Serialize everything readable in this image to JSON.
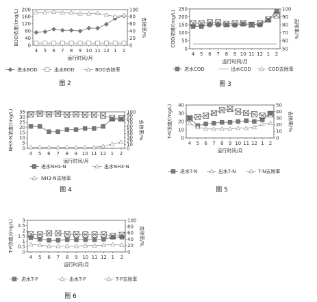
{
  "chart_data": [
    {
      "type": "line",
      "figure_label": "图 2",
      "categories": [
        "4",
        "5",
        "6",
        "7",
        "8",
        "9",
        "10",
        "11",
        "12",
        "1",
        "2"
      ],
      "xlabel": "运行时间/月",
      "ylabel": "BOD浓度/(mg/L)",
      "y2label": "去除率/%",
      "ylim": [
        0,
        200
      ],
      "yticks": [
        0,
        40,
        80,
        120,
        160,
        200
      ],
      "y2lim": [
        0,
        100
      ],
      "y2ticks": [
        0,
        20,
        40,
        60,
        80,
        100
      ],
      "series": [
        {
          "name": "进水BOD",
          "axis": "left",
          "marker": "diamond",
          "color": "#777777",
          "values": [
            72,
            76,
            90,
            84,
            84,
            80,
            96,
            96,
            118,
            150,
            165
          ]
        },
        {
          "name": "出水BOD",
          "axis": "left",
          "marker": "square-open",
          "color": "#999999",
          "values": [
            12,
            12,
            12,
            12,
            12,
            12,
            12,
            12,
            12,
            12,
            12
          ]
        },
        {
          "name": "BOD去除率",
          "axis": "right",
          "marker": "triangle-open",
          "color": "#999999",
          "values": [
            92,
            92,
            94,
            91,
            91,
            89,
            89,
            90,
            85,
            81,
            84
          ]
        }
      ]
    },
    {
      "type": "line",
      "figure_label": "图 3",
      "categories": [
        "4",
        "5",
        "6",
        "7",
        "8",
        "9",
        "10",
        "11",
        "12",
        "1",
        "2"
      ],
      "xlabel": "运行时间/月",
      "ylabel": "COD浓度/(mg/L)",
      "y2label": "去除率/%",
      "ylim": [
        0,
        250
      ],
      "yticks": [
        0,
        50,
        100,
        150,
        200,
        250
      ],
      "y2lim": [
        50,
        100
      ],
      "y2ticks": [
        50,
        60,
        70,
        80,
        90,
        100
      ],
      "series": [
        {
          "name": "进水COD",
          "axis": "left",
          "marker": "square",
          "color": "#777777",
          "values": [
            140,
            140,
            150,
            150,
            150,
            148,
            155,
            152,
            150,
            180,
            235
          ]
        },
        {
          "name": "出水COD",
          "axis": "left",
          "marker": "none",
          "color": "#999999",
          "values": [
            30,
            30,
            30,
            30,
            30,
            30,
            30,
            30,
            30,
            30,
            30
          ]
        },
        {
          "name": "COD去除率",
          "axis": "right",
          "marker": "x-open",
          "color": "#999999",
          "values": [
            82,
            82,
            83,
            83,
            81,
            82,
            82,
            80,
            82,
            87,
            92
          ]
        }
      ]
    },
    {
      "type": "line",
      "figure_label": "图 4",
      "categories": [
        "4",
        "5",
        "6",
        "7",
        "8",
        "9",
        "10",
        "11",
        "12",
        "1",
        "2"
      ],
      "xlabel": "运行时间/月",
      "ylabel": "NH3-N浓度/(mg/L)",
      "y2label": "去除率/%",
      "ylim": [
        0,
        35
      ],
      "yticks": [
        0,
        5,
        10,
        15,
        20,
        25,
        30,
        35
      ],
      "y2lim": [
        0,
        100
      ],
      "y2ticks": [
        0,
        10,
        20,
        30,
        40,
        50,
        60,
        70,
        80,
        90,
        100
      ],
      "series": [
        {
          "name": "进水NH3-N",
          "axis": "left",
          "marker": "square",
          "color": "#777777",
          "values": [
            21,
            21,
            16,
            16,
            18,
            18,
            19,
            19,
            21,
            28,
            28
          ]
        },
        {
          "name": "出水NH3-N",
          "axis": "left",
          "marker": "triangle-open",
          "color": "#999999",
          "values": [
            1,
            1,
            1,
            1,
            1,
            1,
            1,
            1,
            2,
            4,
            6
          ]
        },
        {
          "name": "NH3-N去除率",
          "axis": "right",
          "marker": "x-open",
          "color": "#999999",
          "values": [
            93,
            95,
            93,
            95,
            92,
            93,
            92,
            92,
            90,
            83,
            82
          ]
        }
      ]
    },
    {
      "type": "line",
      "figure_label": "图 5",
      "categories": [
        "4",
        "5",
        "6",
        "7",
        "8",
        "9",
        "10",
        "11",
        "12",
        "1",
        "2"
      ],
      "xlabel": "运行时间/月",
      "ylabel": "T-N浓度/(mg/L)",
      "y2label": "去除率/%",
      "ylim": [
        0,
        40
      ],
      "yticks": [
        0,
        10,
        20,
        30,
        40
      ],
      "y2lim": [
        0,
        50
      ],
      "y2ticks": [
        0,
        10,
        20,
        30,
        40,
        50
      ],
      "series": [
        {
          "name": "进水T-N",
          "axis": "left",
          "marker": "square",
          "color": "#777777",
          "values": [
            24,
            15,
            17,
            18,
            19,
            19,
            20,
            21,
            20,
            22,
            30
          ]
        },
        {
          "name": "出水T-N",
          "axis": "left",
          "marker": "triangle-open",
          "color": "#999999",
          "values": [
            18,
            13,
            11,
            11,
            11,
            11,
            12,
            12,
            13,
            17,
            18
          ]
        },
        {
          "name": "T-N去除率",
          "axis": "right",
          "marker": "x-open",
          "color": "#999999",
          "values": [
            30,
            32,
            34,
            38,
            42,
            44,
            40,
            38,
            36,
            34,
            36
          ]
        }
      ]
    },
    {
      "type": "line",
      "figure_label": "图 6",
      "categories": [
        "4",
        "5",
        "6",
        "7",
        "8",
        "9",
        "10",
        "11",
        "12",
        "1",
        "2"
      ],
      "xlabel": "运行时间/月",
      "ylabel": "T-P浓度/(mg/L)",
      "y2label": "去除率/%",
      "ylim": [
        0,
        3
      ],
      "yticks": [
        0,
        0.5,
        1.0,
        1.5,
        2.0,
        2.5,
        3
      ],
      "y2lim": [
        0,
        100
      ],
      "y2ticks": [
        0,
        20,
        40,
        60,
        80,
        100
      ],
      "series": [
        {
          "name": "进水T-P",
          "axis": "left",
          "marker": "square",
          "color": "#777777",
          "values": [
            1.35,
            1.2,
            1.1,
            1.1,
            1.15,
            1.15,
            1.15,
            1.15,
            1.2,
            1.4,
            1.4
          ]
        },
        {
          "name": "出水T-P",
          "axis": "left",
          "marker": "triangle-open",
          "color": "#999999",
          "values": [
            0.7,
            0.65,
            0.55,
            0.55,
            0.55,
            0.55,
            0.6,
            0.6,
            0.65,
            0.7,
            0.65
          ]
        },
        {
          "name": "T-P去除率",
          "axis": "right",
          "marker": "x-open",
          "color": "#999999",
          "values": [
            56,
            55,
            59,
            59,
            56,
            56,
            55,
            55,
            55,
            50,
            54
          ]
        }
      ]
    }
  ]
}
